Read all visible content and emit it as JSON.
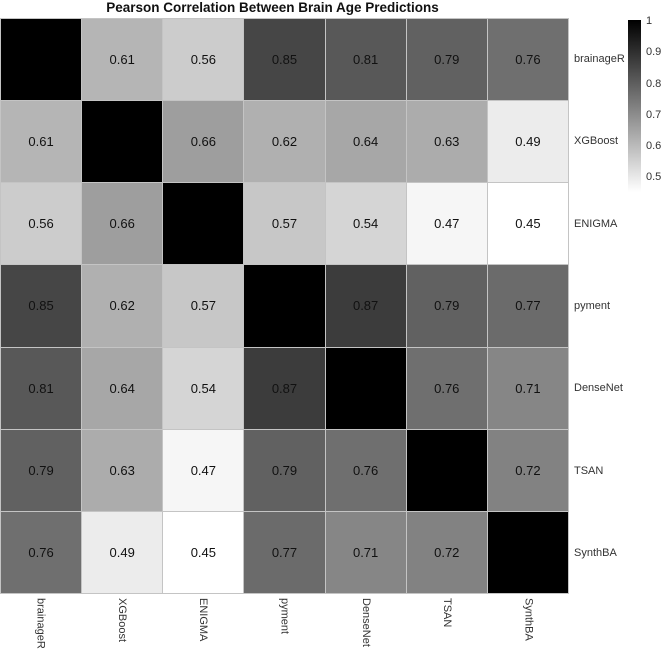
{
  "title": "Pearson Correlation Between Brain Age Predictions",
  "chart_data": {
    "type": "heatmap",
    "title": "Pearson Correlation Between Brain Age Predictions",
    "labels": [
      "brainageR",
      "XGBoost",
      "ENIGMA",
      "pyment",
      "DenseNet",
      "TSAN",
      "SynthBA"
    ],
    "matrix": [
      [
        1.0,
        0.61,
        0.56,
        0.85,
        0.81,
        0.79,
        0.76
      ],
      [
        0.61,
        1.0,
        0.66,
        0.62,
        0.64,
        0.63,
        0.49
      ],
      [
        0.56,
        0.66,
        1.0,
        0.57,
        0.54,
        0.47,
        0.45
      ],
      [
        0.85,
        0.62,
        0.57,
        1.0,
        0.87,
        0.79,
        0.77
      ],
      [
        0.81,
        0.64,
        0.54,
        0.87,
        1.0,
        0.76,
        0.71
      ],
      [
        0.79,
        0.63,
        0.47,
        0.79,
        0.76,
        1.0,
        0.72
      ],
      [
        0.76,
        0.49,
        0.45,
        0.77,
        0.71,
        0.72,
        1.0
      ]
    ],
    "value_decimals": 2,
    "diagonal_values_hidden": true,
    "colormap": {
      "min_value": 0.45,
      "max_value": 1.0,
      "min_color": "#ffffff",
      "max_color": "#000000"
    },
    "grid_line_color": "#c4c4c4",
    "value_text_color": "#111111",
    "colorbar": {
      "position": "right",
      "tick_labels": [
        "1",
        "0.9",
        "0.8",
        "0.7",
        "0.6",
        "0.5"
      ],
      "tick_values": [
        1.0,
        0.9,
        0.8,
        0.7,
        0.6,
        0.5
      ],
      "top_color": "#000000",
      "bottom_color": "#ffffff"
    },
    "legend_position": "right",
    "grid_on": false
  }
}
